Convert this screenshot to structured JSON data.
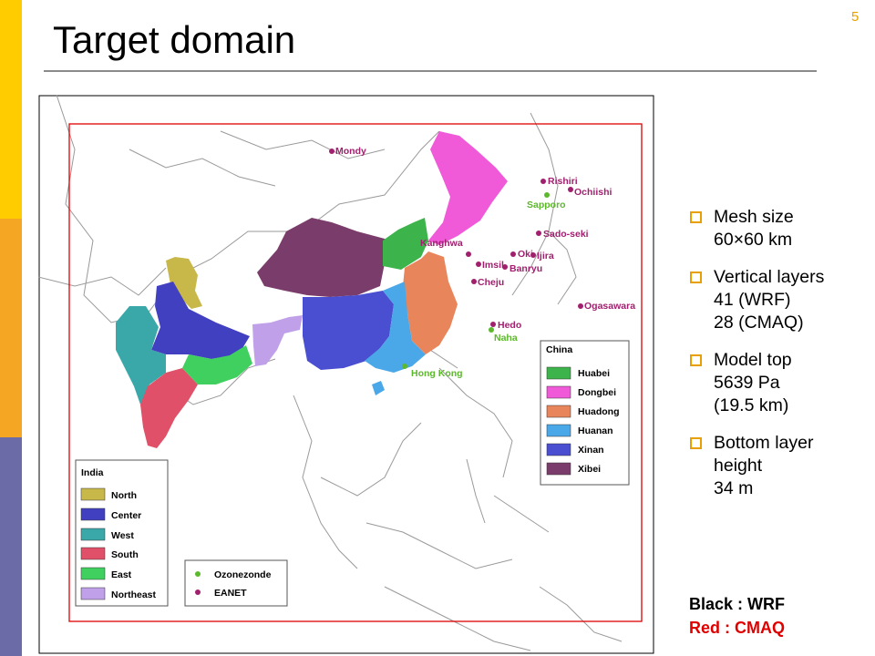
{
  "slide": {
    "title": "Target domain",
    "page_number": "5",
    "colors": {
      "accent_bar_top": "#FFCC00",
      "accent_bar_mid": "#F5A623",
      "accent_bar_bottom": "#6B6BA8",
      "bullet_marker": "#E8A000"
    }
  },
  "bullets": [
    {
      "lines": [
        "Mesh size",
        "60×60 km"
      ]
    },
    {
      "lines": [
        "Vertical layers",
        "41 (WRF)",
        "28 (CMAQ)"
      ]
    },
    {
      "lines": [
        "Model top",
        "5639 Pa",
        "(19.5 km)"
      ]
    },
    {
      "lines": [
        "Bottom layer",
        "height",
        "34 m"
      ]
    }
  ],
  "domain_note": {
    "black": "Black : WRF",
    "red": "Red : CMAQ"
  },
  "map": {
    "stations_eanet": [
      "Mondy",
      "Rishiri",
      "Ochiishi",
      "Sado-seki",
      "Kanghwa",
      "Oki",
      "Ijira",
      "Banryu",
      "Imsil",
      "Cheju",
      "Ogasawara",
      "Hedo"
    ],
    "stations_ozonesonde": [
      "Sapporo",
      "Naha",
      "Hong Kong"
    ],
    "legend_china": {
      "title": "China",
      "items": [
        {
          "label": "Huabei",
          "color": "#3CB44B"
        },
        {
          "label": "Dongbei",
          "color": "#F05AD8"
        },
        {
          "label": "Huadong",
          "color": "#E8855A"
        },
        {
          "label": "Huanan",
          "color": "#4AA8E8"
        },
        {
          "label": "Xinan",
          "color": "#4A4ED0"
        },
        {
          "label": "Xibei",
          "color": "#7A3C6A"
        }
      ]
    },
    "legend_india": {
      "title": "India",
      "items": [
        {
          "label": "North",
          "color": "#C8B84A"
        },
        {
          "label": "Center",
          "color": "#4040C0"
        },
        {
          "label": "West",
          "color": "#3AA8A8"
        },
        {
          "label": "South",
          "color": "#E05068"
        },
        {
          "label": "East",
          "color": "#40D060"
        },
        {
          "label": "Northeast",
          "color": "#C0A0E8"
        }
      ]
    },
    "legend_markers": {
      "items": [
        {
          "label": "Ozonezonde",
          "color": "#5CB82C"
        },
        {
          "label": "EANET",
          "color": "#A0206E"
        }
      ]
    },
    "colors": {
      "station_label_eanet": "#A0206E",
      "station_label_ozone": "#5CB82C",
      "cmaq_box": "#E00000"
    }
  }
}
